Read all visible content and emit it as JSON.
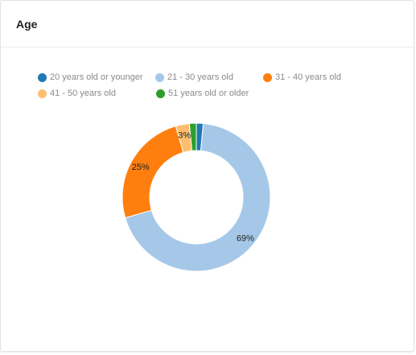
{
  "card": {
    "title": "Age"
  },
  "chart_data": {
    "type": "pie",
    "donut": true,
    "title": "",
    "legend_position": "top-left",
    "categories": [
      "20 years old or younger",
      "21 - 30 years old",
      "31 - 40 years old",
      "41 - 50 years old",
      "51 years old or older"
    ],
    "values": [
      1.5,
      69,
      25,
      3,
      1.5
    ],
    "data_labels": [
      "",
      "69%",
      "25%",
      "3%",
      ""
    ],
    "colors": [
      "#1f78b4",
      "#a6c8e8",
      "#ff7f0e",
      "#fdbf6f",
      "#2ca02c"
    ]
  }
}
